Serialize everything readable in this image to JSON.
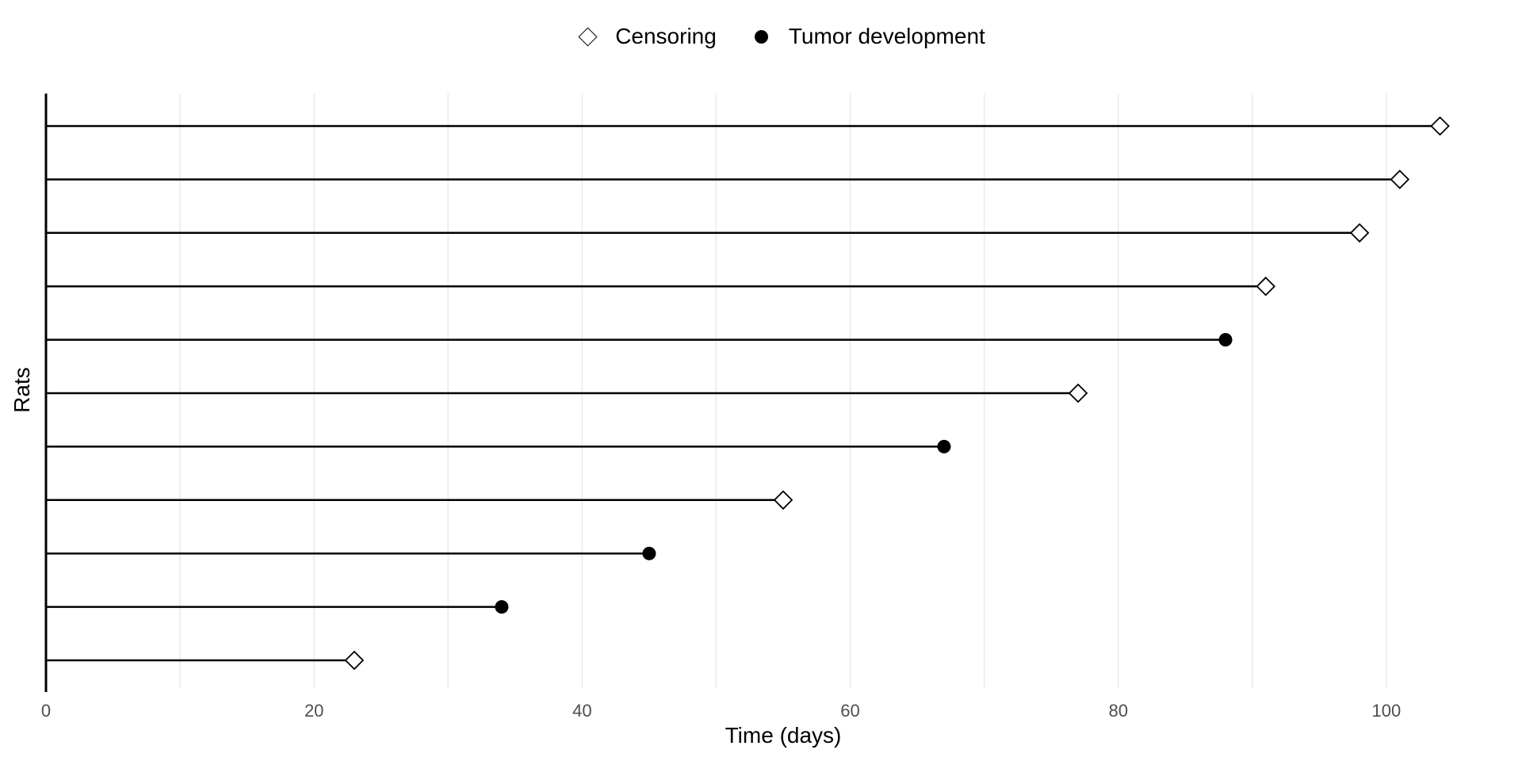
{
  "chart_data": {
    "type": "scatter",
    "subtype": "event-history-lollipop",
    "title": "",
    "xlabel": "Time (days)",
    "ylabel": "Rats",
    "xlim": [
      0,
      110
    ],
    "x_ticks": [
      0,
      20,
      40,
      60,
      80,
      100
    ],
    "minor_gridlines_x": [
      10,
      20,
      30,
      40,
      50,
      60,
      70,
      80,
      90,
      100
    ],
    "grid": "vertical-only",
    "legend_position": "top-center",
    "colors": {
      "line": "#000000",
      "marker_censoring_fill": "#ffffff",
      "marker_censoring_stroke": "#000000",
      "marker_tumor": "#000000",
      "gridline": "#ebebeb",
      "tick_label": "#4d4d4d",
      "axis_title": "#000000",
      "background": "#ffffff"
    },
    "legend": [
      {
        "label": "Censoring",
        "marker": "open-diamond"
      },
      {
        "label": "Tumor development",
        "marker": "filled-circle"
      }
    ],
    "rows": [
      {
        "row": 1,
        "time_days": 104,
        "event": "censoring"
      },
      {
        "row": 2,
        "time_days": 101,
        "event": "censoring"
      },
      {
        "row": 3,
        "time_days": 98,
        "event": "censoring"
      },
      {
        "row": 4,
        "time_days": 91,
        "event": "censoring"
      },
      {
        "row": 5,
        "time_days": 88,
        "event": "tumor"
      },
      {
        "row": 6,
        "time_days": 77,
        "event": "censoring"
      },
      {
        "row": 7,
        "time_days": 67,
        "event": "tumor"
      },
      {
        "row": 8,
        "time_days": 55,
        "event": "censoring"
      },
      {
        "row": 9,
        "time_days": 45,
        "event": "tumor"
      },
      {
        "row": 10,
        "time_days": 34,
        "event": "tumor"
      },
      {
        "row": 11,
        "time_days": 23,
        "event": "censoring"
      }
    ]
  }
}
